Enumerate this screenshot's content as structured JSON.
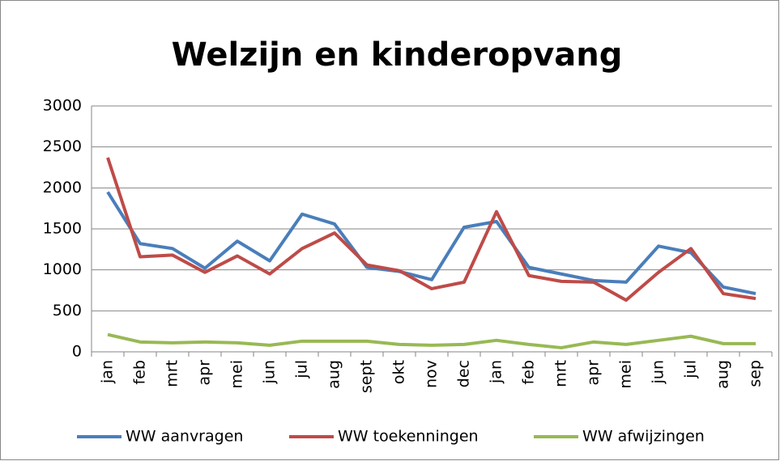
{
  "chart_data": {
    "type": "line",
    "title": "Welzijn en kinderopvang",
    "categories": [
      "jan",
      "feb",
      "mrt",
      "apr",
      "mei",
      "jun",
      "jul",
      "aug",
      "sept",
      "okt",
      "nov",
      "dec",
      "jan",
      "feb",
      "mrt",
      "apr",
      "mei",
      "jun",
      "jul",
      "aug",
      "sep"
    ],
    "series": [
      {
        "name": "WW aanvragen",
        "color": "#4a7ebb",
        "values": [
          1950,
          1320,
          1260,
          1020,
          1350,
          1110,
          1680,
          1560,
          1030,
          980,
          880,
          1520,
          1590,
          1030,
          950,
          870,
          850,
          1290,
          1210,
          790,
          710
        ]
      },
      {
        "name": "WW toekenningen",
        "color": "#be4b48",
        "values": [
          2370,
          1160,
          1180,
          970,
          1170,
          950,
          1260,
          1450,
          1060,
          990,
          770,
          850,
          1710,
          930,
          860,
          850,
          630,
          970,
          1260,
          710,
          650
        ]
      },
      {
        "name": "WW afwijzingen",
        "color": "#98b954",
        "values": [
          210,
          120,
          110,
          120,
          110,
          80,
          130,
          130,
          130,
          90,
          80,
          90,
          140,
          90,
          50,
          120,
          90,
          140,
          190,
          100,
          100
        ]
      }
    ],
    "ylim": [
      0,
      3000
    ],
    "yticks": [
      0,
      500,
      1000,
      1500,
      2000,
      2500,
      3000
    ],
    "grid": true,
    "legend": "bottom"
  }
}
